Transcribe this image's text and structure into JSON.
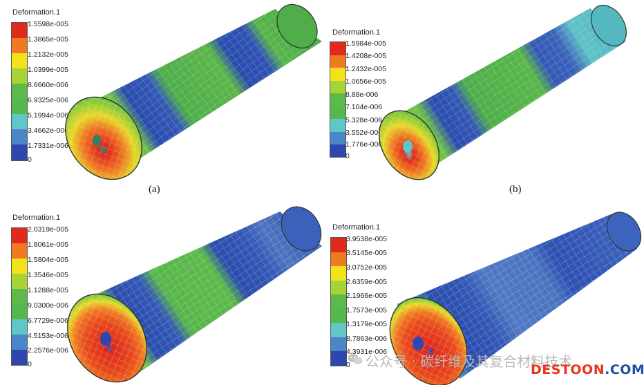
{
  "panels": [
    {
      "legend_title": "Deformation.1",
      "ticks": [
        "1.5598e-005",
        "1.3865e-005",
        "1.2132e-005",
        "1.0399e-005",
        "8.6660e-006",
        "6.9325e-006",
        "5.1994e-006",
        "3.4662e-006",
        "1.7331e-006",
        "0"
      ],
      "caption": "(a)"
    },
    {
      "legend_title": "Deformation.1",
      "ticks": [
        "1.5984e-005",
        "1.4208e-005",
        "1.2432e-005",
        "1.0656e-005",
        "8.88e-006",
        "7.104e-006",
        "5.328e-006",
        "3.552e-006",
        "1.776e-006",
        "0"
      ],
      "caption": "(b)"
    },
    {
      "legend_title": "Deformation.1",
      "ticks": [
        "2.0319e-005",
        "1.8061e-005",
        "1.5804e-005",
        "1.3546e-005",
        "1.1288e-005",
        "9.0300e-006",
        "6.7729e-006",
        "4.5153e-006",
        "2.2576e-006",
        "0"
      ],
      "caption": ""
    },
    {
      "legend_title": "Deformation.1",
      "ticks": [
        "3.9538e-005",
        "3.5145e-005",
        "3.0752e-005",
        "2.6359e-005",
        "2.1966e-005",
        "1.7573e-005",
        "1.3179e-005",
        "8.7863e-006",
        "4.3931e-006",
        "0"
      ],
      "caption": ""
    }
  ],
  "legend_colors": [
    "#e02a1c",
    "#f07a22",
    "#f2e21a",
    "#a8d336",
    "#5cb94a",
    "#54b84e",
    "#5fc7c8",
    "#4a86c8",
    "#2f46b0"
  ],
  "watermark": {
    "text": "公众号 · 碳纤维及其复合材料技术",
    "icon": "wechat-icon"
  },
  "brand": {
    "part1": "DESTOON",
    "part2": ".COM",
    "color1": "#e8341c",
    "color2": "#1f4fa6"
  }
}
